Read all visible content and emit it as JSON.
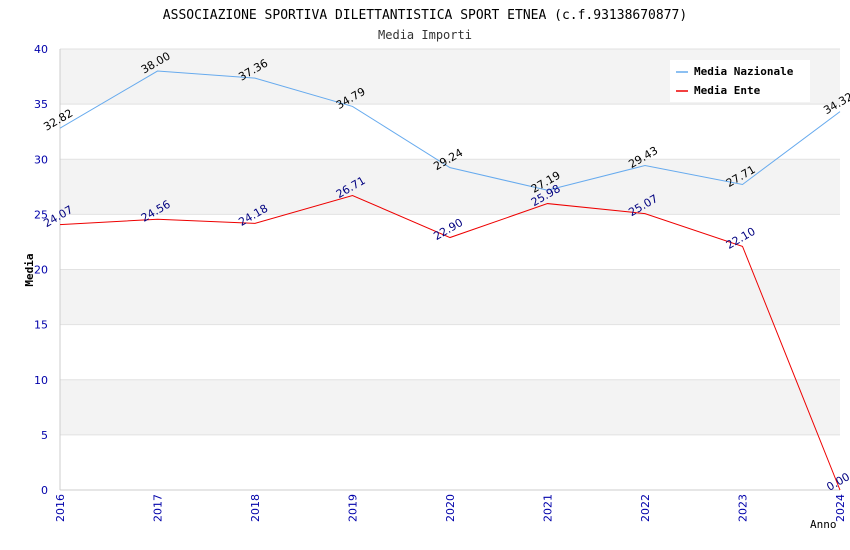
{
  "chart_data": {
    "type": "line",
    "title": "ASSOCIAZIONE SPORTIVA DILETTANTISTICA SPORT ETNEA (c.f.93138670877)",
    "subtitle": "Media Importi",
    "xlabel": "Anno",
    "ylabel": "Media",
    "x": [
      "2016",
      "2017",
      "2018",
      "2019",
      "2020",
      "2021",
      "2022",
      "2023",
      "2024"
    ],
    "ylim": [
      0,
      40
    ],
    "yticks": [
      "0",
      "5",
      "10",
      "15",
      "20",
      "25",
      "30",
      "35",
      "40"
    ],
    "grid": true,
    "legend_position": "top-right",
    "series": [
      {
        "name": "Media Nazionale",
        "color": "#66aaee",
        "label_color": "#000000",
        "values": [
          32.82,
          38.0,
          37.36,
          34.79,
          29.24,
          27.19,
          29.43,
          27.71,
          34.32
        ],
        "labels": [
          "32.82",
          "38.00",
          "37.36",
          "34.79",
          "29.24",
          "27.19",
          "29.43",
          "27.71",
          "34.32"
        ]
      },
      {
        "name": "Media Ente",
        "color": "#ee0000",
        "label_color": "#000080",
        "values": [
          24.07,
          24.56,
          24.18,
          26.71,
          22.9,
          25.98,
          25.07,
          22.1,
          0.0
        ],
        "labels": [
          "24.07",
          "24.56",
          "24.18",
          "26.71",
          "22.90",
          "25.98",
          "25.07",
          "22.10",
          "0.00"
        ]
      }
    ]
  }
}
